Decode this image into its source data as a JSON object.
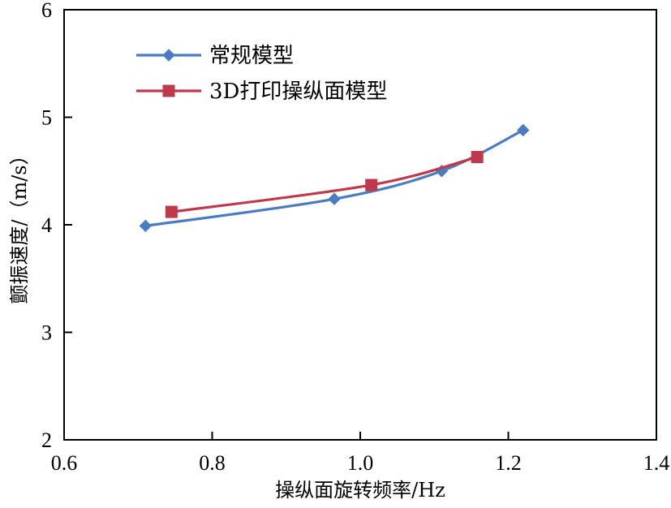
{
  "chart_data": {
    "type": "line",
    "title": "",
    "xlabel": "操纵面旋转频率/Hz",
    "ylabel": "颤振速度/（m/s）",
    "xlim": [
      0.6,
      1.4
    ],
    "ylim": [
      2,
      6
    ],
    "xticks": [
      "0.6",
      "0.8",
      "1.0",
      "1.2",
      "1.4"
    ],
    "yticks": [
      "2",
      "3",
      "4",
      "5",
      "6"
    ],
    "grid": false,
    "legend_position": "top-left",
    "series": [
      {
        "name": "常规模型",
        "color": "#4a7cc4",
        "marker": "diamond",
        "x": [
          0.71,
          0.965,
          1.11,
          1.22
        ],
        "y": [
          3.99,
          4.24,
          4.5,
          4.88
        ]
      },
      {
        "name": "3D打印操纵面模型",
        "color": "#c0394a",
        "marker": "square",
        "x": [
          0.745,
          1.015,
          1.158
        ],
        "y": [
          4.12,
          4.37,
          4.63
        ]
      }
    ]
  }
}
